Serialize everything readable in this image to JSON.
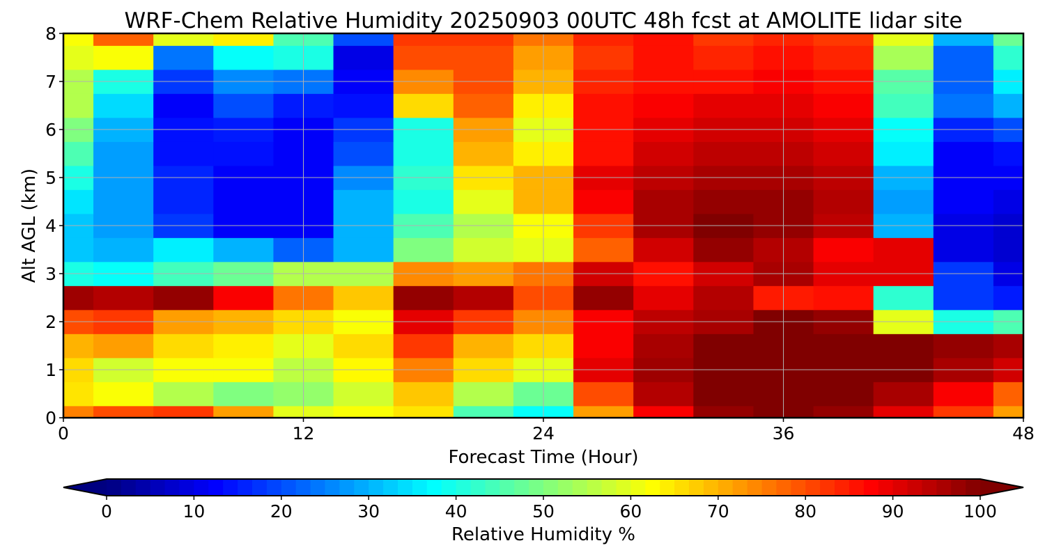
{
  "chart_data": {
    "type": "heatmap",
    "title": "WRF-Chem Relative Humidity 20250903 00UTC 48h fcst at AMOLITE lidar site",
    "xlabel": "Forecast Time (Hour)",
    "ylabel": "Alt AGL (km)",
    "xlim": [
      0,
      48
    ],
    "ylim": [
      0,
      8
    ],
    "x_ticks": [
      0,
      12,
      24,
      36,
      48
    ],
    "y_ticks": [
      0,
      1,
      2,
      3,
      4,
      5,
      6,
      7,
      8
    ],
    "grid": true,
    "colormap": "jet",
    "colorbar": {
      "label": "Relative Humidity %",
      "orientation": "horizontal",
      "placement": "bottom",
      "extend": "both",
      "range": [
        0,
        100
      ],
      "ticks": [
        0,
        10,
        20,
        30,
        40,
        50,
        60,
        70,
        80,
        90,
        100
      ]
    },
    "x": [
      0,
      3,
      6,
      9,
      12,
      15,
      18,
      21,
      24,
      27,
      30,
      33,
      36,
      39,
      42,
      45,
      48
    ],
    "y": [
      0,
      0.5,
      1,
      1.5,
      2,
      2.5,
      3,
      3.5,
      4,
      4.5,
      5,
      5.5,
      6,
      6.5,
      7,
      7.5,
      8
    ],
    "z": [
      [
        75,
        80,
        82,
        72,
        60,
        62,
        65,
        45,
        38,
        72,
        88,
        98,
        100,
        98,
        90,
        82,
        72
      ],
      [
        65,
        62,
        55,
        50,
        52,
        58,
        68,
        55,
        48,
        80,
        95,
        100,
        100,
        100,
        96,
        88,
        78
      ],
      [
        66,
        58,
        62,
        62,
        56,
        63,
        75,
        66,
        60,
        90,
        97,
        100,
        100,
        100,
        100,
        96,
        92
      ],
      [
        70,
        72,
        66,
        64,
        60,
        66,
        82,
        70,
        66,
        88,
        96,
        100,
        100,
        100,
        100,
        98,
        96
      ],
      [
        80,
        82,
        72,
        70,
        66,
        62,
        90,
        82,
        74,
        88,
        94,
        96,
        100,
        98,
        60,
        40,
        45
      ],
      [
        97,
        95,
        98,
        88,
        76,
        68,
        98,
        95,
        80,
        98,
        90,
        95,
        85,
        86,
        42,
        18,
        15
      ],
      [
        40,
        38,
        44,
        48,
        55,
        55,
        74,
        72,
        76,
        92,
        86,
        92,
        96,
        90,
        90,
        18,
        10
      ],
      [
        32,
        30,
        36,
        30,
        22,
        30,
        50,
        58,
        60,
        78,
        92,
        98,
        95,
        88,
        90,
        10,
        8
      ],
      [
        32,
        28,
        18,
        12,
        12,
        30,
        45,
        55,
        62,
        82,
        96,
        100,
        98,
        94,
        30,
        10,
        8
      ],
      [
        35,
        28,
        16,
        12,
        12,
        30,
        40,
        60,
        70,
        88,
        96,
        98,
        98,
        95,
        28,
        12,
        10
      ],
      [
        40,
        28,
        16,
        12,
        12,
        26,
        42,
        65,
        70,
        90,
        94,
        96,
        96,
        94,
        30,
        12,
        12
      ],
      [
        45,
        28,
        14,
        14,
        12,
        20,
        40,
        70,
        64,
        86,
        92,
        94,
        94,
        92,
        36,
        12,
        14
      ],
      [
        50,
        30,
        14,
        15,
        12,
        18,
        40,
        72,
        60,
        86,
        90,
        92,
        92,
        90,
        38,
        16,
        20
      ],
      [
        55,
        34,
        12,
        20,
        15,
        14,
        66,
        78,
        64,
        86,
        88,
        90,
        90,
        88,
        44,
        24,
        30
      ],
      [
        55,
        40,
        18,
        26,
        24,
        12,
        74,
        80,
        70,
        84,
        86,
        86,
        88,
        86,
        46,
        22,
        36
      ],
      [
        60,
        62,
        24,
        38,
        40,
        10,
        80,
        80,
        72,
        82,
        86,
        84,
        86,
        84,
        54,
        22,
        42
      ],
      [
        62,
        78,
        60,
        64,
        45,
        20,
        82,
        82,
        76,
        84,
        86,
        82,
        84,
        82,
        60,
        30,
        48
      ]
    ]
  }
}
